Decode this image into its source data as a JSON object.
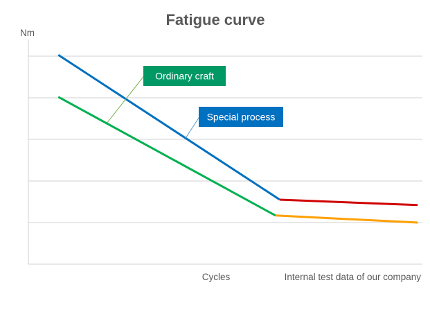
{
  "chart_data": {
    "type": "line",
    "title": "Fatigue curve",
    "ylabel": "Nm",
    "xlabel": "Cycles",
    "note": "Internal test data of our company",
    "xlim": [
      0,
      100
    ],
    "ylim": [
      0,
      5.4
    ],
    "y_gridlines": [
      1,
      2,
      3,
      4,
      5
    ],
    "tick_labels_shown": false,
    "series": [
      {
        "name": "Special process (steep)",
        "color": "#0070C0",
        "points": [
          [
            7.6,
            5.03
          ],
          [
            63.8,
            1.55
          ]
        ]
      },
      {
        "name": "Special process (flat)",
        "color": "#D00000",
        "points": [
          [
            63.8,
            1.55
          ],
          [
            98.8,
            1.42
          ]
        ]
      },
      {
        "name": "Ordinary craft (steep)",
        "color": "#00B050",
        "points": [
          [
            7.6,
            4.02
          ],
          [
            62.7,
            1.17
          ]
        ]
      },
      {
        "name": "Ordinary craft (flat)",
        "color": "#FFA000",
        "points": [
          [
            62.7,
            1.17
          ],
          [
            98.8,
            1.0
          ]
        ]
      }
    ],
    "annotations": [
      {
        "text": "Ordinary craft",
        "bg": "#009966",
        "leader_color": "#70AD47",
        "target": [
          20,
          3.4
        ]
      },
      {
        "text": "Special process",
        "bg": "#0070C0",
        "leader_color": "#5B9BD5",
        "target": [
          39.9,
          3.03
        ]
      }
    ]
  }
}
